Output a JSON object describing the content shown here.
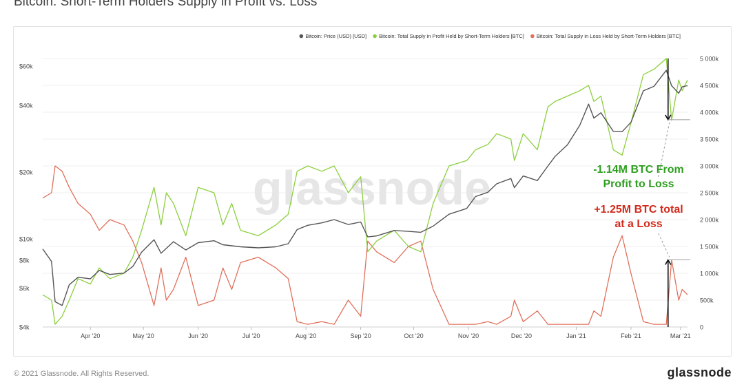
{
  "page": {
    "title": "Bitcoin: Short-Term Holders Supply in Profit vs. Loss",
    "watermark": "glassnode",
    "copyright": "© 2021 Glassnode. All Rights Reserved.",
    "brand": "glassnode"
  },
  "chart_data": {
    "type": "line",
    "title": "Bitcoin: Short-Term Holders Supply in Profit vs. Loss",
    "legend_position": "top-right",
    "x_ticks": [
      "Apr '20",
      "May '20",
      "Jun '20",
      "Jul '20",
      "Aug '20",
      "Sep '20",
      "Oct '20",
      "Nov '20",
      "Dec '20",
      "Jan '21",
      "Feb '21",
      "Mar '21"
    ],
    "x_range": [
      "2020-03-05",
      "2021-03-05"
    ],
    "y_left": {
      "scale": "log",
      "range": [
        4000,
        65000
      ],
      "ticks": [
        "$4k",
        "$6k",
        "$8k",
        "$10k",
        "$20k",
        "$40k",
        "$60k"
      ],
      "tick_values": [
        4000,
        6000,
        8000,
        10000,
        20000,
        40000,
        60000
      ]
    },
    "y_right": {
      "scale": "linear",
      "range": [
        0,
        5000000
      ],
      "ticks": [
        "0",
        "500k",
        "1 000k",
        "1 500k",
        "2 000k",
        "2 500k",
        "3 000k",
        "3 500k",
        "4 000k",
        "4 500k",
        "5 000k"
      ],
      "tick_values": [
        0,
        500000,
        1000000,
        1500000,
        2000000,
        2500000,
        3000000,
        3500000,
        4000000,
        4500000,
        5000000
      ]
    },
    "grid": true,
    "series": [
      {
        "name": "Bitcoin: Price (USD) [USD]",
        "axis": "left",
        "color": "#555555",
        "points": [
          [
            "2020-03-05",
            9000
          ],
          [
            "2020-03-10",
            7900
          ],
          [
            "2020-03-12",
            5200
          ],
          [
            "2020-03-16",
            5000
          ],
          [
            "2020-03-20",
            6200
          ],
          [
            "2020-03-25",
            6700
          ],
          [
            "2020-04-01",
            6600
          ],
          [
            "2020-04-06",
            7200
          ],
          [
            "2020-04-12",
            6900
          ],
          [
            "2020-04-20",
            7000
          ],
          [
            "2020-04-25",
            7500
          ],
          [
            "2020-04-30",
            8700
          ],
          [
            "2020-05-07",
            9900
          ],
          [
            "2020-05-11",
            8600
          ],
          [
            "2020-05-18",
            9700
          ],
          [
            "2020-05-25",
            8900
          ],
          [
            "2020-06-01",
            9600
          ],
          [
            "2020-06-10",
            9800
          ],
          [
            "2020-06-15",
            9400
          ],
          [
            "2020-06-25",
            9200
          ],
          [
            "2020-07-05",
            9100
          ],
          [
            "2020-07-15",
            9200
          ],
          [
            "2020-07-22",
            9500
          ],
          [
            "2020-07-27",
            11000
          ],
          [
            "2020-08-02",
            11500
          ],
          [
            "2020-08-10",
            11800
          ],
          [
            "2020-08-17",
            12200
          ],
          [
            "2020-08-25",
            11600
          ],
          [
            "2020-09-01",
            11900
          ],
          [
            "2020-09-05",
            10200
          ],
          [
            "2020-09-10",
            10300
          ],
          [
            "2020-09-20",
            10900
          ],
          [
            "2020-09-28",
            10800
          ],
          [
            "2020-10-05",
            10700
          ],
          [
            "2020-10-12",
            11400
          ],
          [
            "2020-10-21",
            12900
          ],
          [
            "2020-10-31",
            13700
          ],
          [
            "2020-11-05",
            15500
          ],
          [
            "2020-11-12",
            16200
          ],
          [
            "2020-11-17",
            17700
          ],
          [
            "2020-11-25",
            18700
          ],
          [
            "2020-11-27",
            17000
          ],
          [
            "2020-12-02",
            19200
          ],
          [
            "2020-12-10",
            18300
          ],
          [
            "2020-12-16",
            21300
          ],
          [
            "2020-12-20",
            23500
          ],
          [
            "2020-12-27",
            26500
          ],
          [
            "2021-01-03",
            32500
          ],
          [
            "2021-01-08",
            40500
          ],
          [
            "2021-01-11",
            35000
          ],
          [
            "2021-01-15",
            37000
          ],
          [
            "2021-01-22",
            30500
          ],
          [
            "2021-01-27",
            30400
          ],
          [
            "2021-02-01",
            33500
          ],
          [
            "2021-02-08",
            46500
          ],
          [
            "2021-02-14",
            48700
          ],
          [
            "2021-02-21",
            57500
          ],
          [
            "2021-02-24",
            49000
          ],
          [
            "2021-02-28",
            45300
          ],
          [
            "2021-03-02",
            48500
          ],
          [
            "2021-03-05",
            49000
          ]
        ]
      },
      {
        "name": "Bitcoin: Total Supply in Profit Held by Short-Term Holders [BTC]",
        "axis": "right",
        "color": "#8ccf3e",
        "points": [
          [
            "2020-03-05",
            600000
          ],
          [
            "2020-03-10",
            500000
          ],
          [
            "2020-03-12",
            50000
          ],
          [
            "2020-03-16",
            200000
          ],
          [
            "2020-03-20",
            500000
          ],
          [
            "2020-03-25",
            900000
          ],
          [
            "2020-04-01",
            800000
          ],
          [
            "2020-04-06",
            1100000
          ],
          [
            "2020-04-12",
            900000
          ],
          [
            "2020-04-20",
            1000000
          ],
          [
            "2020-04-25",
            1300000
          ],
          [
            "2020-04-30",
            1800000
          ],
          [
            "2020-05-07",
            2600000
          ],
          [
            "2020-05-11",
            1900000
          ],
          [
            "2020-05-14",
            2500000
          ],
          [
            "2020-05-18",
            2300000
          ],
          [
            "2020-05-25",
            1700000
          ],
          [
            "2020-06-01",
            2600000
          ],
          [
            "2020-06-10",
            2500000
          ],
          [
            "2020-06-15",
            1900000
          ],
          [
            "2020-06-20",
            2300000
          ],
          [
            "2020-06-25",
            1800000
          ],
          [
            "2020-07-05",
            1700000
          ],
          [
            "2020-07-15",
            1900000
          ],
          [
            "2020-07-22",
            2100000
          ],
          [
            "2020-07-27",
            2900000
          ],
          [
            "2020-08-02",
            3000000
          ],
          [
            "2020-08-10",
            2900000
          ],
          [
            "2020-08-17",
            3000000
          ],
          [
            "2020-08-25",
            2500000
          ],
          [
            "2020-09-01",
            2800000
          ],
          [
            "2020-09-05",
            1400000
          ],
          [
            "2020-09-10",
            1600000
          ],
          [
            "2020-09-20",
            1800000
          ],
          [
            "2020-09-28",
            1500000
          ],
          [
            "2020-10-05",
            1400000
          ],
          [
            "2020-10-12",
            2300000
          ],
          [
            "2020-10-21",
            3000000
          ],
          [
            "2020-10-31",
            3100000
          ],
          [
            "2020-11-05",
            3300000
          ],
          [
            "2020-11-12",
            3400000
          ],
          [
            "2020-11-17",
            3600000
          ],
          [
            "2020-11-25",
            3500000
          ],
          [
            "2020-11-27",
            3100000
          ],
          [
            "2020-12-02",
            3600000
          ],
          [
            "2020-12-10",
            3300000
          ],
          [
            "2020-12-16",
            4100000
          ],
          [
            "2020-12-20",
            4200000
          ],
          [
            "2020-12-27",
            4300000
          ],
          [
            "2021-01-03",
            4400000
          ],
          [
            "2021-01-08",
            4500000
          ],
          [
            "2021-01-11",
            4200000
          ],
          [
            "2021-01-15",
            4300000
          ],
          [
            "2021-01-22",
            3300000
          ],
          [
            "2021-01-27",
            3200000
          ],
          [
            "2021-02-01",
            3800000
          ],
          [
            "2021-02-08",
            4700000
          ],
          [
            "2021-02-14",
            4800000
          ],
          [
            "2021-02-21",
            5000000
          ],
          [
            "2021-02-24",
            3850000
          ],
          [
            "2021-02-28",
            4600000
          ],
          [
            "2021-03-02",
            4400000
          ],
          [
            "2021-03-05",
            4600000
          ]
        ]
      },
      {
        "name": "Bitcoin: Total Supply in Loss Held by Short-Term Holders [BTC]",
        "axis": "right",
        "color": "#e0705b",
        "points": [
          [
            "2020-03-05",
            2400000
          ],
          [
            "2020-03-10",
            2500000
          ],
          [
            "2020-03-12",
            3000000
          ],
          [
            "2020-03-16",
            2900000
          ],
          [
            "2020-03-20",
            2600000
          ],
          [
            "2020-03-25",
            2300000
          ],
          [
            "2020-04-01",
            2100000
          ],
          [
            "2020-04-06",
            1800000
          ],
          [
            "2020-04-12",
            2000000
          ],
          [
            "2020-04-20",
            1900000
          ],
          [
            "2020-04-25",
            1600000
          ],
          [
            "2020-04-30",
            1200000
          ],
          [
            "2020-05-07",
            400000
          ],
          [
            "2020-05-11",
            1100000
          ],
          [
            "2020-05-14",
            500000
          ],
          [
            "2020-05-18",
            700000
          ],
          [
            "2020-05-25",
            1300000
          ],
          [
            "2020-06-01",
            400000
          ],
          [
            "2020-06-10",
            500000
          ],
          [
            "2020-06-15",
            1100000
          ],
          [
            "2020-06-20",
            700000
          ],
          [
            "2020-06-25",
            1200000
          ],
          [
            "2020-07-05",
            1300000
          ],
          [
            "2020-07-15",
            1100000
          ],
          [
            "2020-07-22",
            900000
          ],
          [
            "2020-07-27",
            100000
          ],
          [
            "2020-08-02",
            50000
          ],
          [
            "2020-08-10",
            100000
          ],
          [
            "2020-08-17",
            50000
          ],
          [
            "2020-08-25",
            500000
          ],
          [
            "2020-09-01",
            200000
          ],
          [
            "2020-09-05",
            1600000
          ],
          [
            "2020-09-10",
            1400000
          ],
          [
            "2020-09-20",
            1200000
          ],
          [
            "2020-09-28",
            1500000
          ],
          [
            "2020-10-05",
            1600000
          ],
          [
            "2020-10-12",
            700000
          ],
          [
            "2020-10-21",
            50000
          ],
          [
            "2020-10-31",
            50000
          ],
          [
            "2020-11-05",
            50000
          ],
          [
            "2020-11-12",
            100000
          ],
          [
            "2020-11-17",
            50000
          ],
          [
            "2020-11-25",
            200000
          ],
          [
            "2020-11-27",
            500000
          ],
          [
            "2020-12-02",
            100000
          ],
          [
            "2020-12-10",
            300000
          ],
          [
            "2020-12-16",
            50000
          ],
          [
            "2020-12-20",
            50000
          ],
          [
            "2020-12-27",
            50000
          ],
          [
            "2021-01-03",
            50000
          ],
          [
            "2021-01-08",
            50000
          ],
          [
            "2021-01-11",
            300000
          ],
          [
            "2021-01-15",
            200000
          ],
          [
            "2021-01-22",
            1300000
          ],
          [
            "2021-01-27",
            1700000
          ],
          [
            "2021-02-01",
            1000000
          ],
          [
            "2021-02-08",
            100000
          ],
          [
            "2021-02-14",
            50000
          ],
          [
            "2021-02-21",
            50000
          ],
          [
            "2021-02-24",
            1250000
          ],
          [
            "2021-02-28",
            500000
          ],
          [
            "2021-03-02",
            700000
          ],
          [
            "2021-03-05",
            600000
          ]
        ]
      }
    ],
    "annotations": [
      {
        "text": [
          "-1.14M BTC From",
          "Profit to Loss"
        ],
        "color": "#2e9e1f",
        "x": "2021-02-22",
        "from": 5000000,
        "to": 3860000
      },
      {
        "text": [
          "+1.25M BTC total",
          "at a Loss"
        ],
        "color": "#d22a1b",
        "x": "2021-02-22",
        "from": 0,
        "to": 1250000
      }
    ]
  }
}
